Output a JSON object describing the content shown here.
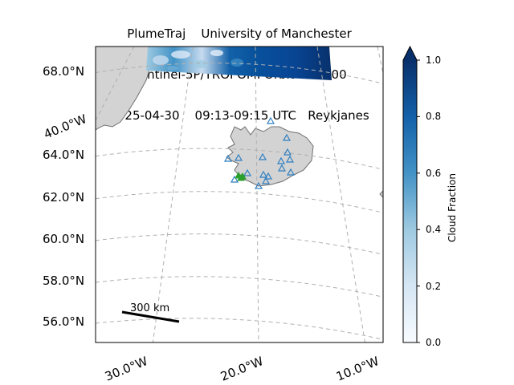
{
  "title": {
    "line1": "PlumeTraj    University of Manchester",
    "line2": "Sentinel-5P/TROPOMI Orbit #39100",
    "line3": "2025-04-30    09:13-09:15 UTC   Reykjanes"
  },
  "lat_labels": [
    "68.0°N",
    "64.0°N",
    "62.0°N",
    "60.0°N",
    "58.0°N",
    "56.0°N"
  ],
  "lon_labels": [
    "40.0°W",
    "30.0°W",
    "20.0°W",
    "10.0°W"
  ],
  "scale_bar": {
    "label": "300 km"
  },
  "colorbar": {
    "label": "Cloud Fraction",
    "ticks": [
      "1.0",
      "0.8",
      "0.6",
      "0.4",
      "0.2",
      "0.0"
    ],
    "colormap": "Blues",
    "range": [
      0.0,
      1.0
    ],
    "extend": "max"
  },
  "colors": {
    "land": "#d3d3d3",
    "coast": "#707070",
    "grid": "#b0b0b0",
    "volcano_marker": "#2f7fc1",
    "vent_marker": "#2ca02c"
  },
  "markers": {
    "volcanoes": "blue-outlined-triangle",
    "source": "green-triangle"
  }
}
